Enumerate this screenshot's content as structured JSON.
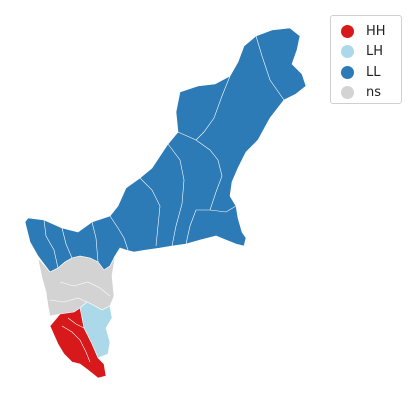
{
  "legend": {
    "items": [
      {
        "label": "HH",
        "color": "#d7191c"
      },
      {
        "label": "LH",
        "color": "#abd9e9"
      },
      {
        "label": "LL",
        "color": "#2c7bb6"
      },
      {
        "label": "ns",
        "color": "#d3d3d3"
      }
    ]
  },
  "map": {
    "regions": [
      {
        "category": "LL",
        "color": "#2c7bb6"
      },
      {
        "category": "ns",
        "color": "#d3d3d3"
      },
      {
        "category": "LH",
        "color": "#abd9e9"
      },
      {
        "category": "HH",
        "color": "#d7191c"
      }
    ],
    "boundary_color": "#ffffff"
  }
}
